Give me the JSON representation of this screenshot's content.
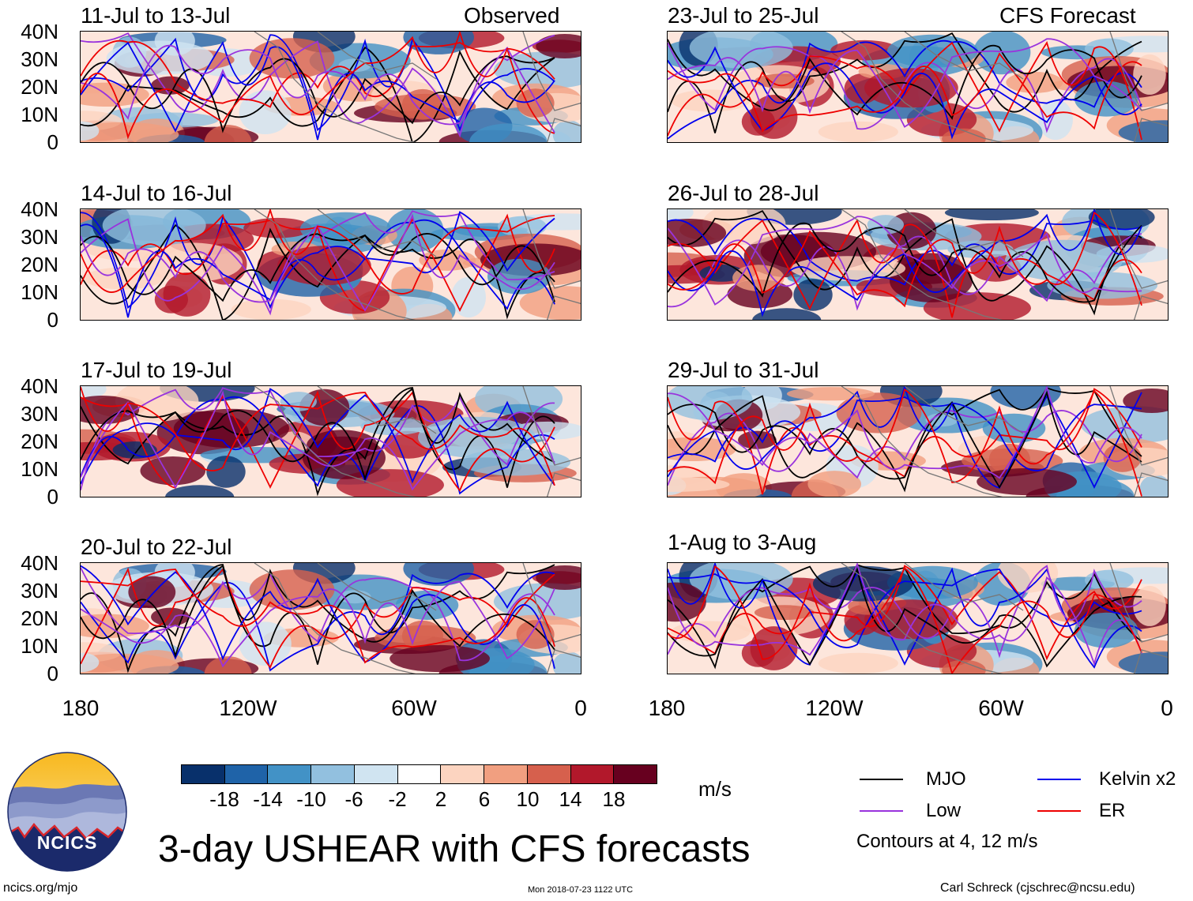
{
  "panels": [
    {
      "period": "11-Jul to 13-Jul",
      "tag": "Observed"
    },
    {
      "period": "14-Jul to 16-Jul",
      "tag": ""
    },
    {
      "period": "17-Jul to 19-Jul",
      "tag": ""
    },
    {
      "period": "20-Jul to 22-Jul",
      "tag": ""
    },
    {
      "period": "23-Jul to 25-Jul",
      "tag": "CFS Forecast"
    },
    {
      "period": "26-Jul to 28-Jul",
      "tag": ""
    },
    {
      "period": "29-Jul to 31-Jul",
      "tag": ""
    },
    {
      "period": "1-Aug to 3-Aug",
      "tag": ""
    }
  ],
  "axes": {
    "lat_labels": [
      "40N",
      "30N",
      "20N",
      "10N",
      "0"
    ],
    "lon_labels": [
      "180",
      "120W",
      "60W",
      "0"
    ]
  },
  "colorbar": {
    "labels": [
      "-18",
      "-14",
      "-10",
      "-6",
      "-2",
      "2",
      "6",
      "10",
      "14",
      "18"
    ],
    "units": "m/s",
    "colors": [
      "#08306b",
      "#1f63a8",
      "#4292c6",
      "#92c0df",
      "#d0e4f1",
      "#ffffff",
      "#fcd4c0",
      "#f19f80",
      "#d6604d",
      "#b2182b",
      "#67001f"
    ]
  },
  "legend": {
    "items": [
      {
        "label": "MJO",
        "color": "#000000"
      },
      {
        "label": "Kelvin x2",
        "color": "#0000ee"
      },
      {
        "label": "Low",
        "color": "#9933dd"
      },
      {
        "label": "ER",
        "color": "#ee0000"
      }
    ],
    "note": "Contours at 4, 12 m/s"
  },
  "logo": {
    "text": "NCICS"
  },
  "title": "3-day USHEAR with CFS forecasts",
  "footer": {
    "site": "ncics.org/mjo",
    "timestamp": "Mon 2018-07-23 1122 UTC",
    "author": "Carl Schreck (cjschrec@ncsu.edu)"
  }
}
